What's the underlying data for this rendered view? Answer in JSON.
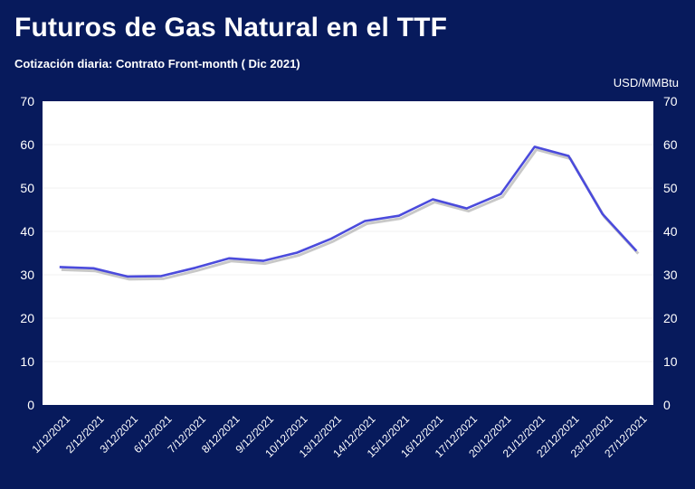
{
  "chart_data": {
    "type": "line",
    "title": "Futuros de Gas Natural en el TTF",
    "subtitle": "Cotización diaria: Contrato Front-month ( Dic 2021)",
    "unit": "USD/MMBtu",
    "categories": [
      "1/12/2021",
      "2/12/2021",
      "3/12/2021",
      "6/12/2021",
      "7/12/2021",
      "8/12/2021",
      "9/12/2021",
      "10/12/2021",
      "13/12/2021",
      "14/12/2021",
      "15/12/2021",
      "16/12/2021",
      "17/12/2021",
      "20/12/2021",
      "21/12/2021",
      "22/12/2021",
      "23/12/2021",
      "27/12/2021"
    ],
    "series": [
      {
        "values": [
          31.8,
          31.5,
          29.6,
          29.7,
          31.6,
          33.8,
          33.2,
          35.1,
          38.3,
          42.4,
          43.6,
          47.4,
          45.3,
          48.6,
          59.5,
          57.4,
          44.0,
          35.5
        ]
      }
    ],
    "ylim": [
      0,
      70
    ],
    "yticks": [
      0,
      10,
      20,
      30,
      40,
      50,
      60,
      70
    ],
    "line_color": "#4b4bdc",
    "plot_background": "#ffffff",
    "background": "#071a5c"
  }
}
